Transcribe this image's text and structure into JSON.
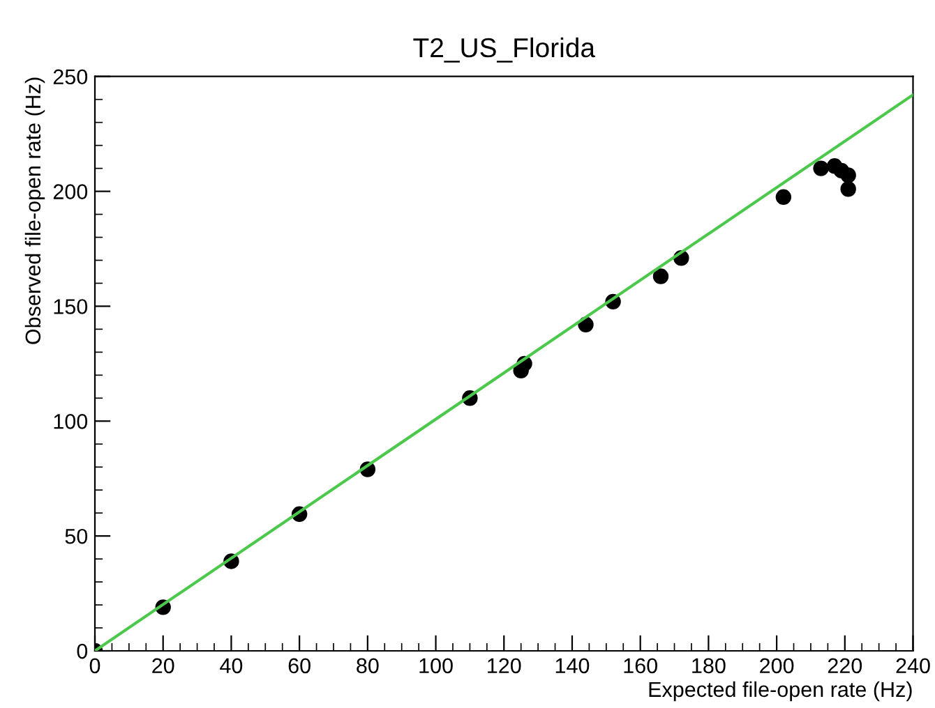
{
  "chart_data": {
    "type": "scatter",
    "title": "T2_US_Florida",
    "xlabel": "Expected file-open rate (Hz)",
    "ylabel": "Observed file-open rate (Hz)",
    "series": [
      {
        "color": "#000000",
        "marker": "circle",
        "x": [
          0,
          20,
          40,
          60,
          80,
          110,
          125,
          126,
          144,
          152,
          166,
          172,
          202,
          213,
          217,
          219,
          221,
          221
        ],
        "values": [
          0,
          19,
          39,
          59.5,
          79,
          110,
          122,
          125,
          142,
          152,
          163,
          171,
          197.5,
          210,
          211,
          209,
          207,
          201
        ]
      },
      {
        "type": "line",
        "color": "#4cc94c",
        "x": [
          0,
          240
        ],
        "values": [
          0,
          242
        ]
      }
    ],
    "xlim": [
      0,
      240
    ],
    "xticks": [
      0,
      20,
      40,
      60,
      80,
      100,
      120,
      140,
      160,
      180,
      200,
      220,
      240
    ],
    "ylim": [
      0,
      250
    ],
    "yticks": [
      0,
      50,
      100,
      150,
      200,
      250
    ],
    "grid": false
  }
}
